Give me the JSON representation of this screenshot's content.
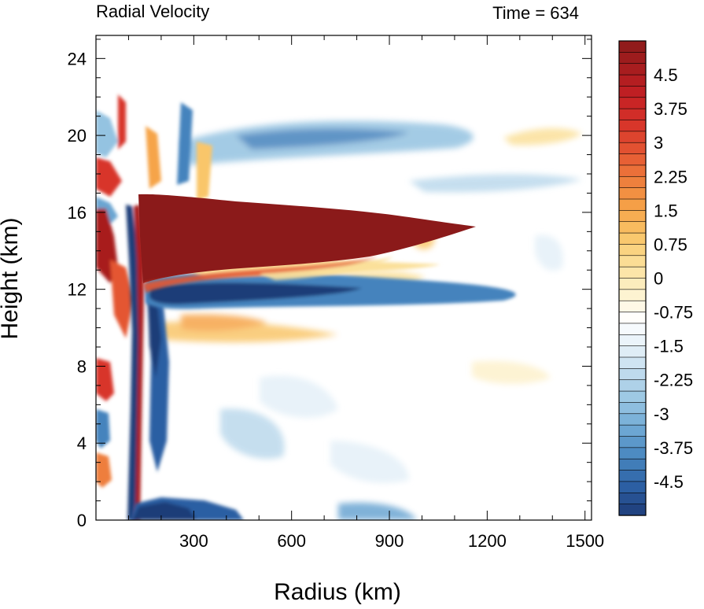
{
  "chart_data": {
    "type": "heatmap",
    "title_left": "Radial Velocity",
    "title_right": "Time = 634",
    "xlabel": "Radius (km)",
    "ylabel": "Height (km)",
    "xlim": [
      0,
      1520
    ],
    "ylim": [
      0,
      25.2
    ],
    "x_ticks": [
      300,
      600,
      900,
      1200,
      1500
    ],
    "x_tick_labels": [
      "300",
      "600",
      "900",
      "1200",
      "1500"
    ],
    "y_ticks": [
      0,
      4,
      8,
      12,
      16,
      20,
      24
    ],
    "y_tick_labels": [
      "0",
      "4",
      "8",
      "12",
      "16",
      "20",
      "24"
    ],
    "colorbar": {
      "min": -5.25,
      "max": 5.25,
      "step": 0.25,
      "labels": [
        4.5,
        3.75,
        3,
        2.25,
        1.5,
        0.75,
        0,
        -0.75,
        -1.5,
        -2.25,
        -3,
        -3.75,
        -4.5
      ],
      "label_text": [
        "4.5",
        "3.75",
        "3",
        "2.25",
        "1.5",
        "0.75",
        "0",
        "-0.75",
        "-1.5",
        "-2.25",
        "-3",
        "-3.75",
        "-4.5"
      ],
      "colors_top_to_bottom": [
        "#8b1a1a",
        "#a81d1f",
        "#c42024",
        "#d8352a",
        "#e45632",
        "#ee7e3c",
        "#f6a449",
        "#f9c66a",
        "#fbe09a",
        "#fdf1cc",
        "#ffffff",
        "#e4f0f8",
        "#bcd9ec",
        "#94c3e1",
        "#6aa5d2",
        "#4583bd",
        "#2c5fa3",
        "#1e3c78"
      ]
    },
    "features": [
      {
        "name": "upper-level outflow jet",
        "sign": "positive",
        "r_range_km": [
          150,
          1000
        ],
        "z_range_km": [
          12.5,
          16.8
        ],
        "peak_value": 5.25
      },
      {
        "name": "inflow below outflow",
        "sign": "negative",
        "r_range_km": [
          130,
          700
        ],
        "z_range_km": [
          10.8,
          12.5
        ],
        "peak_value": -5.25
      },
      {
        "name": "boundary-layer inflow",
        "sign": "negative",
        "r_range_km": [
          130,
          420
        ],
        "z_range_km": [
          0,
          1.2
        ],
        "peak_value": -5.25
      },
      {
        "name": "eyewall dipole",
        "sign": "mixed",
        "r_range_km": [
          120,
          160
        ],
        "z_range_km": [
          0,
          17
        ],
        "peak_value": 4.5
      }
    ]
  }
}
